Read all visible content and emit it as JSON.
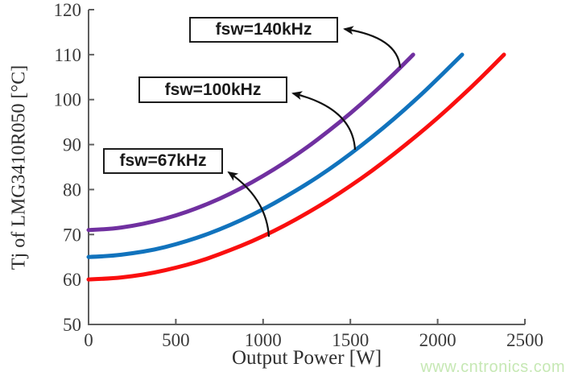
{
  "colors": {
    "axis": "#5e5e5e",
    "tick_label": "#3a3a3a",
    "annotation_border": "#1c1c1c",
    "arrow": "#111111",
    "watermark": "#c6e8b4"
  },
  "watermark": {
    "text": "www.cntronics.com"
  },
  "chart_data": {
    "type": "line",
    "title": "",
    "xlabel": "Output Power [W]",
    "ylabel": "Tj of LMG3410R050 [°C]",
    "xlim": [
      0,
      2500
    ],
    "ylim": [
      50,
      120
    ],
    "x_ticks": [
      0,
      500,
      1000,
      1500,
      2000,
      2500
    ],
    "y_ticks": [
      50,
      60,
      70,
      80,
      90,
      100,
      110,
      120
    ],
    "grid": false,
    "legend_position": "none (boxed annotations with arrows)",
    "series": [
      {
        "name": "fsw=67kHz",
        "color": "#fa0f0f",
        "points": [
          [
            0,
            60
          ],
          [
            125,
            60.2
          ],
          [
            250,
            60.7
          ],
          [
            375,
            61.5
          ],
          [
            500,
            62.6
          ],
          [
            625,
            63.9
          ],
          [
            750,
            65.6
          ],
          [
            875,
            67.5
          ],
          [
            1000,
            69.6
          ],
          [
            1125,
            72.0
          ],
          [
            1250,
            74.7
          ],
          [
            1375,
            77.6
          ],
          [
            1500,
            80.8
          ],
          [
            1625,
            84.2
          ],
          [
            1750,
            87.9
          ],
          [
            1875,
            91.8
          ],
          [
            2000,
            95.9
          ],
          [
            2125,
            100.3
          ],
          [
            2250,
            104.9
          ],
          [
            2380,
            110
          ]
        ]
      },
      {
        "name": "fsw=100kHz",
        "color": "#1173bd",
        "points": [
          [
            0,
            65
          ],
          [
            125,
            65.2
          ],
          [
            250,
            65.8
          ],
          [
            375,
            66.6
          ],
          [
            500,
            67.8
          ],
          [
            625,
            69.3
          ],
          [
            750,
            71.1
          ],
          [
            875,
            73.2
          ],
          [
            1000,
            75.6
          ],
          [
            1125,
            78.3
          ],
          [
            1250,
            81.2
          ],
          [
            1375,
            84.4
          ],
          [
            1500,
            87.9
          ],
          [
            1625,
            91.7
          ],
          [
            1750,
            95.7
          ],
          [
            1875,
            100.0
          ],
          [
            2000,
            104.6
          ],
          [
            2140,
            110
          ]
        ]
      },
      {
        "name": "fsw=140kHz",
        "color": "#7030a0",
        "points": [
          [
            0,
            71
          ],
          [
            125,
            71.2
          ],
          [
            250,
            71.9
          ],
          [
            375,
            72.9
          ],
          [
            500,
            74.2
          ],
          [
            625,
            75.9
          ],
          [
            750,
            77.9
          ],
          [
            875,
            80.3
          ],
          [
            1000,
            83.0
          ],
          [
            1125,
            86.0
          ],
          [
            1250,
            89.3
          ],
          [
            1375,
            93.0
          ],
          [
            1500,
            96.9
          ],
          [
            1625,
            101.2
          ],
          [
            1750,
            105.7
          ],
          [
            1860,
            110
          ]
        ]
      }
    ],
    "annotations": [
      {
        "label": "fsw=140kHz",
        "points_to": "fsw=140kHz"
      },
      {
        "label": "fsw=100kHz",
        "points_to": "fsw=100kHz"
      },
      {
        "label": "fsw=67kHz",
        "points_to": "fsw=67kHz"
      }
    ]
  }
}
